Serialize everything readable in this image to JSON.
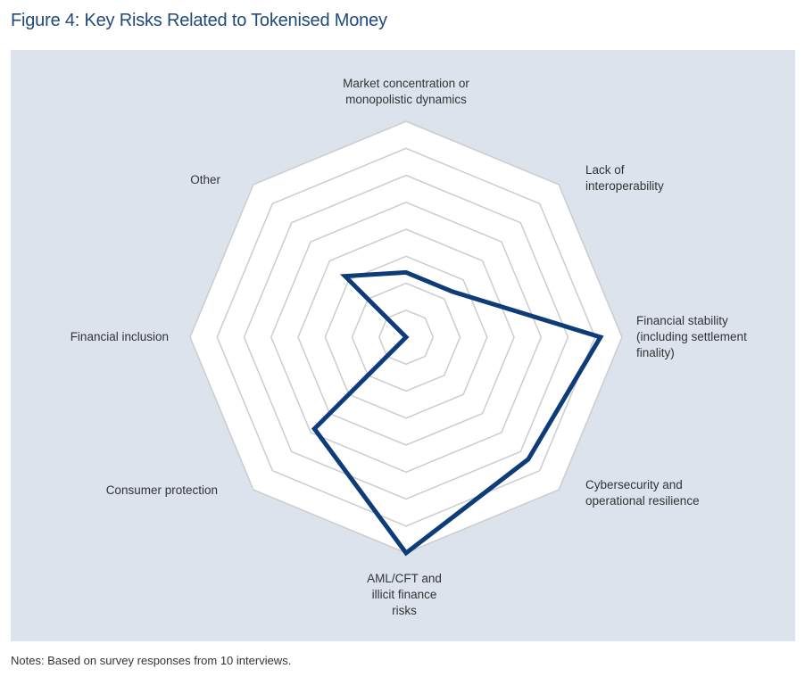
{
  "figure": {
    "title": "Figure 4: Key Risks Related to Tokenised Money",
    "notes": "Notes: Based on survey responses from 10 interviews."
  },
  "colors": {
    "title": "#1f4a7c",
    "panel_bg": "#dce3ed",
    "grid_fill": "#ffffff",
    "grid_line": "#cccccc",
    "series": "#0d3c78",
    "text": "#333333"
  },
  "chart_data": {
    "type": "radar",
    "title": "Figure 4: Key Risks Related to Tokenised Money",
    "axes": [
      [
        "Market concentration or",
        "monopolistic dynamics"
      ],
      [
        "Lack of",
        "interoperability"
      ],
      [
        "Financial stability",
        "(including settlement",
        "finality)"
      ],
      [
        "Cybersecurity and",
        "operational resilience"
      ],
      [
        "AML/CFT and",
        "illicit finance",
        "risks"
      ],
      [
        "Consumer protection"
      ],
      [
        "Financial inclusion"
      ],
      [
        "Other"
      ]
    ],
    "series": [
      {
        "name": "Survey responses",
        "values": [
          3,
          3,
          9,
          8,
          10,
          6,
          0,
          4
        ]
      }
    ],
    "rlim": [
      0,
      10
    ],
    "grid_levels": 8,
    "legend": "none"
  }
}
